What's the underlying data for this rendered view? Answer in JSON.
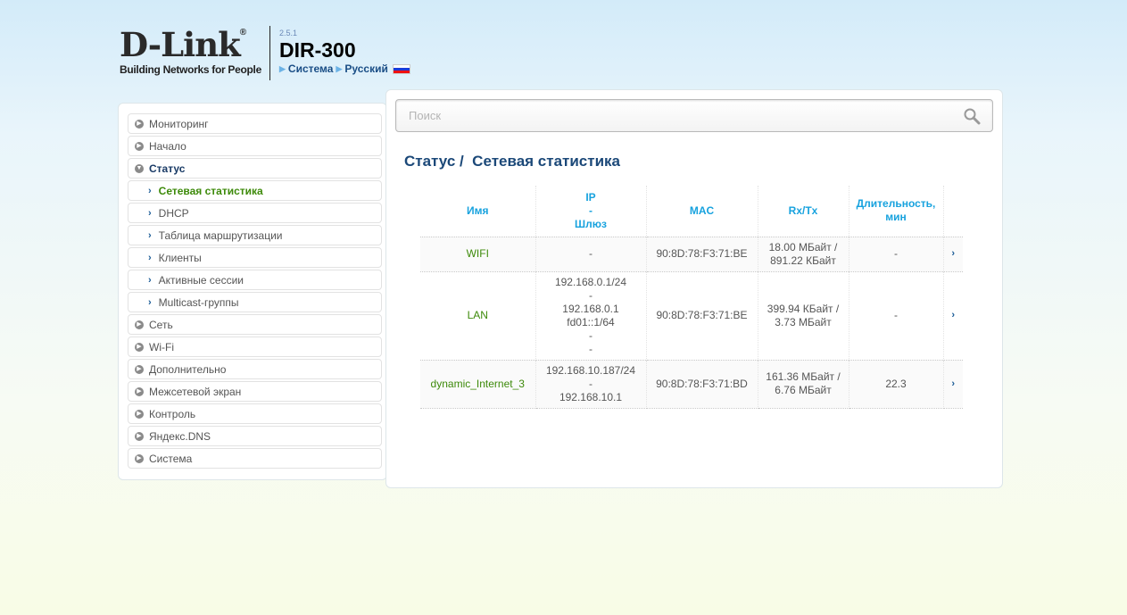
{
  "header": {
    "logo_text": "D-Link",
    "logo_tagline": "Building Networks for People",
    "version": "2.5.1",
    "model": "DIR-300",
    "breadcrumb": [
      "Система",
      "Русский"
    ],
    "flag": "russia-flag-icon"
  },
  "sidebar": {
    "items": [
      {
        "label": "Мониторинг",
        "type": "top"
      },
      {
        "label": "Начало",
        "type": "top"
      },
      {
        "label": "Статус",
        "type": "top",
        "expanded": true
      },
      {
        "label": "Сетевая статистика",
        "type": "sub",
        "selected": true
      },
      {
        "label": "DHCP",
        "type": "sub"
      },
      {
        "label": "Таблица маршрутизации",
        "type": "sub"
      },
      {
        "label": "Клиенты",
        "type": "sub"
      },
      {
        "label": "Активные сессии",
        "type": "sub"
      },
      {
        "label": "Multicast-группы",
        "type": "sub"
      },
      {
        "label": "Сеть",
        "type": "top"
      },
      {
        "label": "Wi-Fi",
        "type": "top"
      },
      {
        "label": "Дополнительно",
        "type": "top"
      },
      {
        "label": "Межсетевой экран",
        "type": "top"
      },
      {
        "label": "Контроль",
        "type": "top"
      },
      {
        "label": "Яндекс.DNS",
        "type": "top"
      },
      {
        "label": "Система",
        "type": "top"
      }
    ]
  },
  "search": {
    "placeholder": "Поиск",
    "value": ""
  },
  "page": {
    "title": "Статус /  Сетевая статистика"
  },
  "table": {
    "headers": {
      "name": "Имя",
      "ip": [
        "IP",
        "-",
        "Шлюз"
      ],
      "mac": "MAC",
      "rxtx": "Rx/Tx",
      "duration": [
        "Длительность,",
        "мин"
      ]
    },
    "rows": [
      {
        "name": "WIFI",
        "ip": [
          "-"
        ],
        "mac": "90:8D:78:F3:71:BE",
        "rxtx": [
          "18.00 МБайт /",
          "891.22 КБайт"
        ],
        "duration": "-"
      },
      {
        "name": "LAN",
        "ip": [
          "192.168.0.1/24",
          "-",
          "192.168.0.1",
          "fd01::1/64",
          "-",
          "-"
        ],
        "mac": "90:8D:78:F3:71:BE",
        "rxtx": [
          "399.94 КБайт /",
          "3.73 МБайт"
        ],
        "duration": "-"
      },
      {
        "name": "dynamic_Internet_3",
        "ip": [
          "192.168.10.187/24",
          "-",
          "192.168.10.1"
        ],
        "mac": "90:8D:78:F3:71:BD",
        "rxtx": [
          "161.36 МБайт /",
          "6.76 МБайт"
        ],
        "duration": "22.3"
      }
    ]
  },
  "colors": {
    "accent": "#17a2de",
    "title": "#1b4878",
    "selected": "#3d8a0a"
  }
}
